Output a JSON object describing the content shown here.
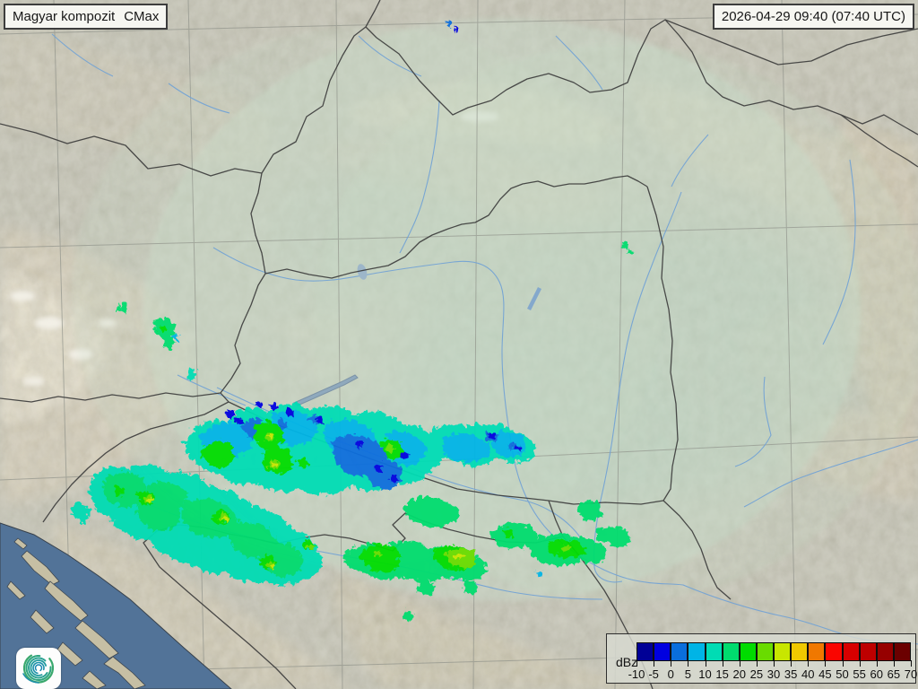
{
  "header": {
    "product_label": "Magyar kompozit",
    "product_type": "CMax",
    "timestamp": "2026-04-29 09:40 (07:40 UTC)"
  },
  "legend": {
    "unit_label": "dBz",
    "tick_labels": [
      "-10",
      "-5",
      "0",
      "5",
      "10",
      "15",
      "20",
      "25",
      "30",
      "35",
      "40",
      "45",
      "50",
      "55",
      "60",
      "65",
      "70"
    ],
    "colors": [
      "#000096",
      "#0000E0",
      "#0A6EDC",
      "#00B4E6",
      "#00DCB4",
      "#00DC6E",
      "#00DC00",
      "#69DC00",
      "#C8E600",
      "#F0C800",
      "#F07800",
      "#FA0500",
      "#D70000",
      "#BE0000",
      "#960000",
      "#6B0000"
    ]
  },
  "map": {
    "colors": {
      "land_base": "#C2C2B3",
      "coverage_tint": "#C8DCCA",
      "sea": "#527398",
      "border": "#3A3A3A",
      "river": "#74A3D4",
      "grid": "#8D9088",
      "echo_turquoise": "#00DCB4",
      "echo_cyan": "#00B4E6",
      "echo_blue": "#0A6EDC",
      "echo_dark_blue": "#0000E0",
      "echo_green": "#00DC6E",
      "echo_bright_green": "#00DC00",
      "echo_yellow_green": "#69DC00",
      "echo_yellow": "#C8E600"
    }
  },
  "logo": {
    "colors": [
      "#3AA86D",
      "#2FA57F",
      "#27A090",
      "#219A9F",
      "#1D92AB",
      "#1A88B2"
    ]
  }
}
